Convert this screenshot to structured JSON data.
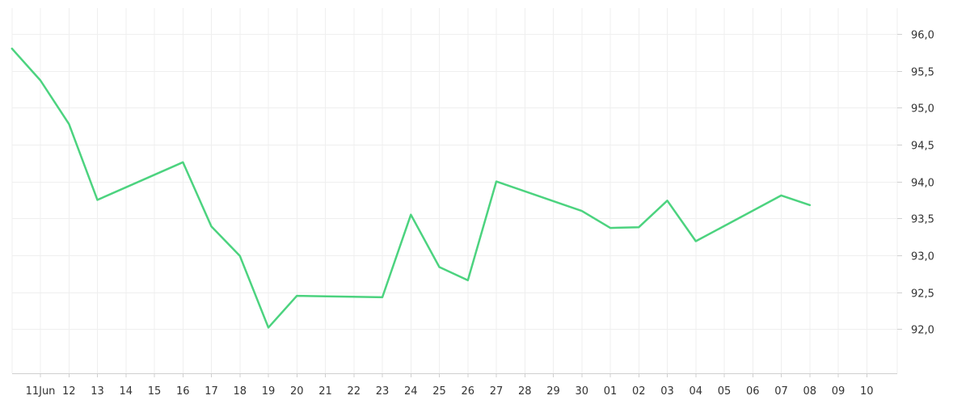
{
  "chart_data": {
    "type": "line",
    "title": "",
    "xlabel": "",
    "ylabel": "",
    "x_tick_labels": [
      "11Jun",
      "12",
      "13",
      "14",
      "15",
      "16",
      "17",
      "18",
      "19",
      "20",
      "21",
      "22",
      "23",
      "24",
      "25",
      "26",
      "27",
      "28",
      "29",
      "30",
      "01",
      "02",
      "03",
      "04",
      "05",
      "06",
      "07",
      "08",
      "09",
      "10"
    ],
    "y_tick_labels": [
      "92,0",
      "92,5",
      "93,0",
      "93,5",
      "94,0",
      "94,5",
      "95,0",
      "95,5",
      "96,0"
    ],
    "ylim": [
      91.4,
      96.35
    ],
    "y_ticks": [
      92.0,
      92.5,
      93.0,
      93.5,
      94.0,
      94.5,
      95.0,
      95.5,
      96.0
    ],
    "grid": true,
    "y_axis_position": "right",
    "series": [
      {
        "color": "#4cd37f",
        "points": [
          {
            "x": "2024-06-10",
            "y": 95.8
          },
          {
            "x": "2024-06-11",
            "y": 95.37
          },
          {
            "x": "2024-06-12",
            "y": 94.78
          },
          {
            "x": "2024-06-13",
            "y": 93.75
          },
          {
            "x": "2024-06-16",
            "y": 94.26
          },
          {
            "x": "2024-06-17",
            "y": 93.39
          },
          {
            "x": "2024-06-18",
            "y": 92.99
          },
          {
            "x": "2024-06-19",
            "y": 92.02
          },
          {
            "x": "2024-06-20",
            "y": 92.45
          },
          {
            "x": "2024-06-23",
            "y": 92.43
          },
          {
            "x": "2024-06-24",
            "y": 93.55
          },
          {
            "x": "2024-06-25",
            "y": 92.84
          },
          {
            "x": "2024-06-26",
            "y": 92.66
          },
          {
            "x": "2024-06-27",
            "y": 94.0
          },
          {
            "x": "2024-06-30",
            "y": 93.6
          },
          {
            "x": "2024-07-01",
            "y": 93.37
          },
          {
            "x": "2024-07-02",
            "y": 93.38
          },
          {
            "x": "2024-07-03",
            "y": 93.74
          },
          {
            "x": "2024-07-04",
            "y": 93.19
          },
          {
            "x": "2024-07-07",
            "y": 93.81
          },
          {
            "x": "2024-07-08",
            "y": 93.68
          }
        ]
      }
    ]
  }
}
